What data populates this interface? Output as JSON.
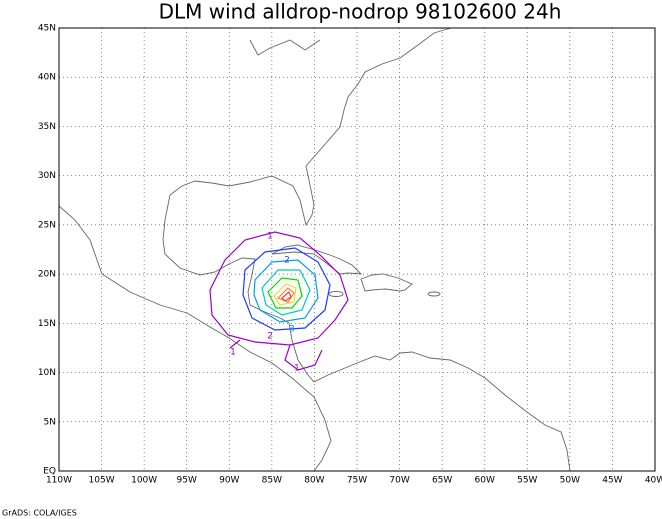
{
  "map": {
    "title": "DLM wind alldrop-nodrop 98102600 24h",
    "x_labels": [
      "110W",
      "105W",
      "100W",
      "95W",
      "90W",
      "85W",
      "80W",
      "75W",
      "70W",
      "65W",
      "60W",
      "55W",
      "50W",
      "45W",
      "40W"
    ],
    "y_labels": [
      "EQ",
      "5N",
      "10N",
      "15N",
      "20N",
      "25N",
      "30N",
      "35N",
      "40N",
      "45N"
    ],
    "contour_labels": [
      "1",
      "2",
      "3",
      "2",
      "1",
      "1"
    ],
    "footer": "GrADS: COLA/IGES"
  }
}
